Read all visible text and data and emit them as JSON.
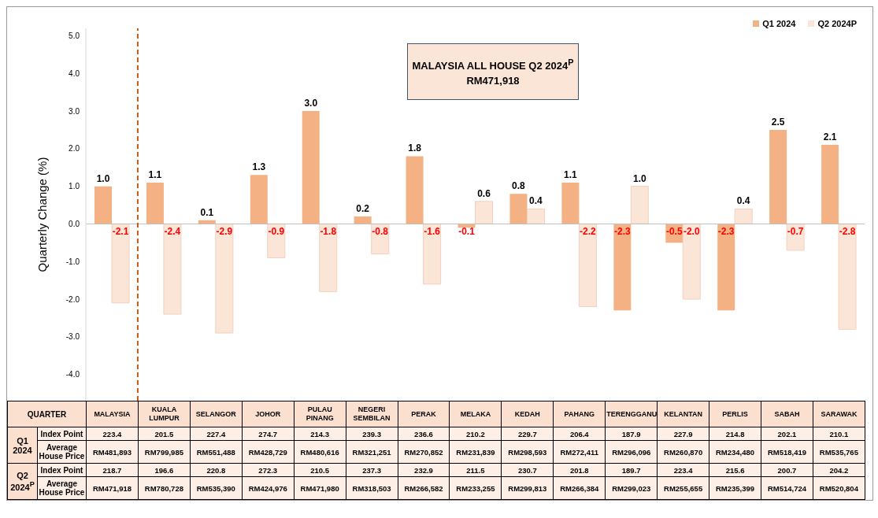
{
  "chart_data": {
    "type": "bar",
    "ylabel": "Quarterly Change (%)",
    "categories": [
      "MALAYSIA",
      "KUALA LUMPUR",
      "SELANGOR",
      "JOHOR",
      "PULAU PINANG",
      "NEGERI SEMBILAN",
      "PERAK",
      "MELAKA",
      "KEDAH",
      "PAHANG",
      "TERENGGANU",
      "KELANTAN",
      "PERLIS",
      "SABAH",
      "SARAWAK"
    ],
    "series": [
      {
        "name": "Q1 2024",
        "color": "#f4b183",
        "values": [
          1.0,
          1.1,
          0.1,
          1.3,
          3.0,
          0.2,
          1.8,
          -0.1,
          0.8,
          1.1,
          -2.3,
          -0.5,
          -2.3,
          2.5,
          2.1
        ],
        "value_labels": [
          "1.0",
          "1.1",
          "0.1",
          "1.3",
          "3.0",
          "0.2",
          "1.8",
          "-0.1",
          "0.8",
          "1.1",
          "-2.3",
          "-0.5",
          "-2.3",
          "2.5",
          "2.1"
        ]
      },
      {
        "name": "Q2 2024P",
        "color": "#fbe5d6",
        "values": [
          -2.1,
          -2.4,
          -2.9,
          -0.9,
          -1.8,
          -0.8,
          -1.6,
          0.6,
          0.4,
          -2.2,
          1.0,
          -2.0,
          0.4,
          -0.7,
          -2.8
        ],
        "value_labels": [
          "-2.1",
          "-2.4",
          "-2.9",
          "-0.9",
          "-1.8",
          "-0.8",
          "-1.6",
          "0.6",
          "0.4",
          "-2.2",
          "1.0",
          "-2.0",
          "0.4",
          "-0.7",
          "-2.8"
        ]
      }
    ],
    "ylim": [
      -4.7,
      5.2
    ],
    "yticks": [
      {
        "value": -4,
        "label": "-4.0"
      },
      {
        "value": -3,
        "label": "-3.0"
      },
      {
        "value": -2,
        "label": "-2.0"
      },
      {
        "value": -1,
        "label": "-1.0"
      },
      {
        "value": 0,
        "label": "0.0"
      },
      {
        "value": 1,
        "label": "1.0"
      },
      {
        "value": 2,
        "label": "2.0"
      },
      {
        "value": 3,
        "label": "3.0"
      },
      {
        "value": 4,
        "label": "4.0"
      },
      {
        "value": 5,
        "label": "5.0"
      }
    ],
    "legend": "top right",
    "ref_lines": [
      {
        "axis": "x",
        "value": "MALAYSIA",
        "color": "#c55a11",
        "line_style": "dashed"
      }
    ],
    "annotations": [
      "MALAYSIA ALL HOUSE Q2 2024$^{P}$",
      "RM471,918",
      "QUARTER",
      "Q1 2024",
      "Q2 2024$^{P}$",
      "Index Point",
      "Average House Price",
      "223.4",
      "201.5",
      "227.4",
      "274.7",
      "214.3",
      "239.3",
      "236.6",
      "210.2",
      "229.7",
      "206.4",
      "187.9",
      "227.9",
      "214.8",
      "202.1",
      "210.1",
      "RM481,893",
      "RM799,985",
      "RM551,488",
      "RM428,729",
      "RM480,616",
      "RM321,251",
      "RM270,852",
      "RM231,839",
      "RM298,593",
      "RM272,411",
      "RM296,096",
      "RM260,870",
      "RM234,480",
      "RM518,419",
      "RM535,765",
      "218.7",
      "196.6",
      "220.8",
      "272.3",
      "210.5",
      "237.3",
      "232.9",
      "211.5",
      "230.7",
      "201.8",
      "189.7",
      "223.4",
      "215.6",
      "200.7",
      "204.2",
      "RM471,918",
      "RM780,728",
      "RM535,390",
      "RM424,976",
      "RM471,980",
      "RM318,503",
      "RM266,582",
      "RM233,255",
      "RM299,813",
      "RM266,384",
      "RM299,023",
      "RM255,655",
      "RM235,399",
      "RM514,724",
      "RM520,804"
    ]
  }
}
